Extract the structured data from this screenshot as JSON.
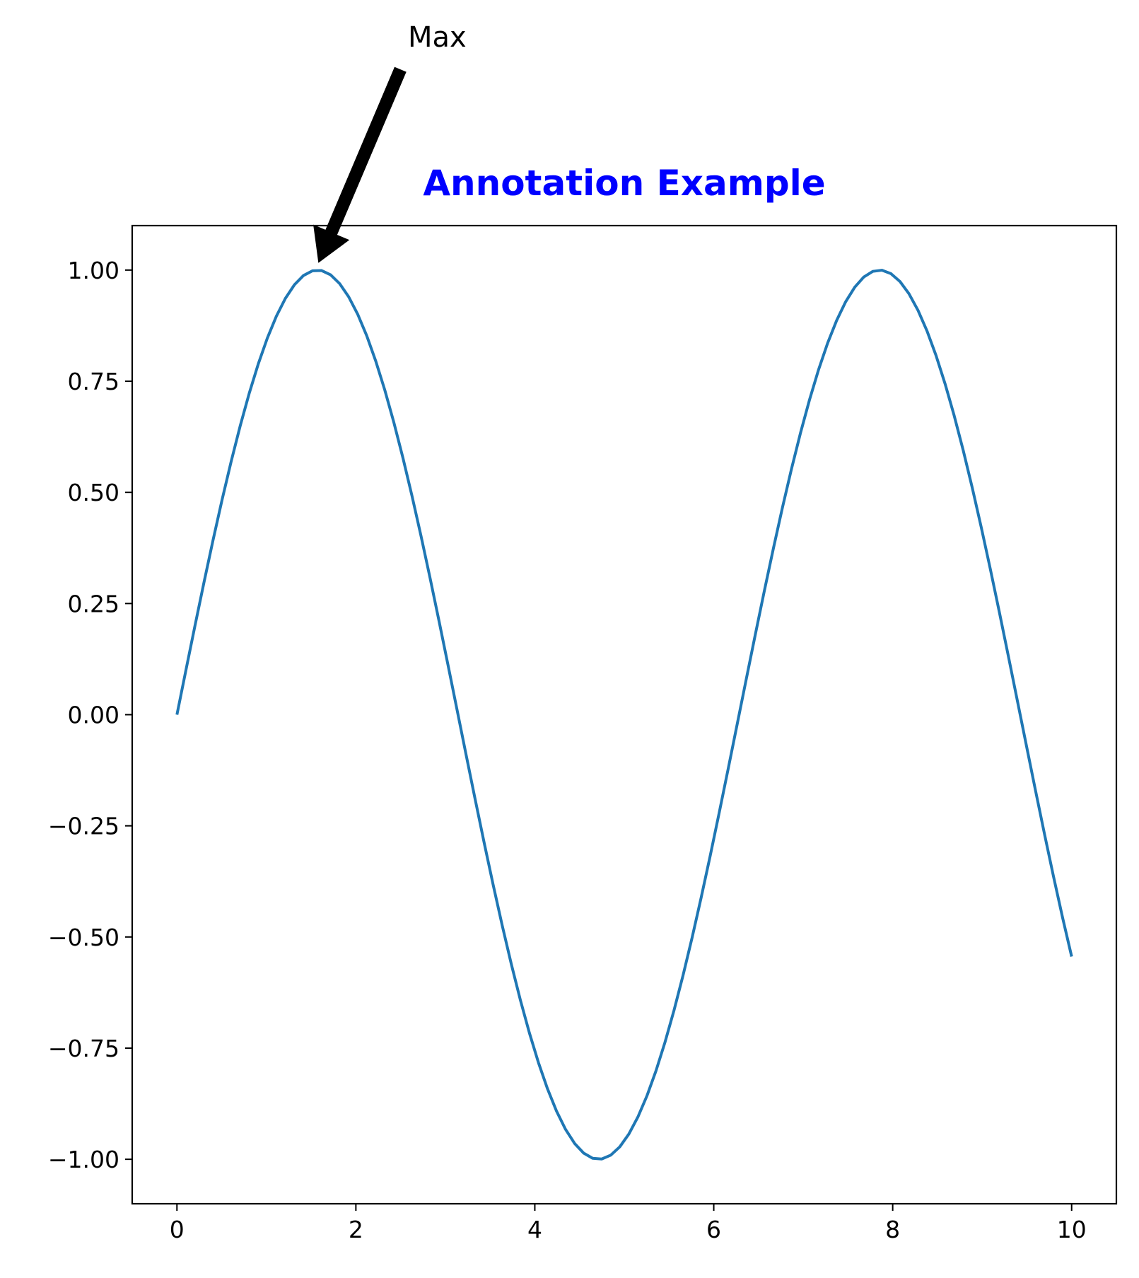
{
  "chart_data": {
    "type": "line",
    "title": "Annotation Example",
    "title_color": "#0000ff",
    "xlabel": "",
    "ylabel": "",
    "xlim": [
      -0.5,
      10.5
    ],
    "ylim": [
      -1.1,
      1.1
    ],
    "x_ticks": [
      0,
      2,
      4,
      6,
      8,
      10
    ],
    "x_tick_labels": [
      "0",
      "2",
      "4",
      "6",
      "8",
      "10"
    ],
    "y_ticks": [
      1.0,
      0.75,
      0.5,
      0.25,
      0.0,
      -0.25,
      -0.5,
      -0.75,
      -1.0
    ],
    "y_tick_labels": [
      "1.00",
      "0.75",
      "0.50",
      "0.25",
      "0.00",
      "−0.25",
      "−0.50",
      "−0.75",
      "−1.00"
    ],
    "grid": false,
    "series": [
      {
        "function": "sin(x)",
        "x_start": 0,
        "x_end": 10,
        "num_points": 100,
        "color": "#1f77b4"
      }
    ],
    "annotation": {
      "text": "Max",
      "point": [
        1.5708,
        1.0
      ],
      "text_pos": [
        2.6,
        1.55
      ],
      "arrow_color": "#000000"
    }
  }
}
